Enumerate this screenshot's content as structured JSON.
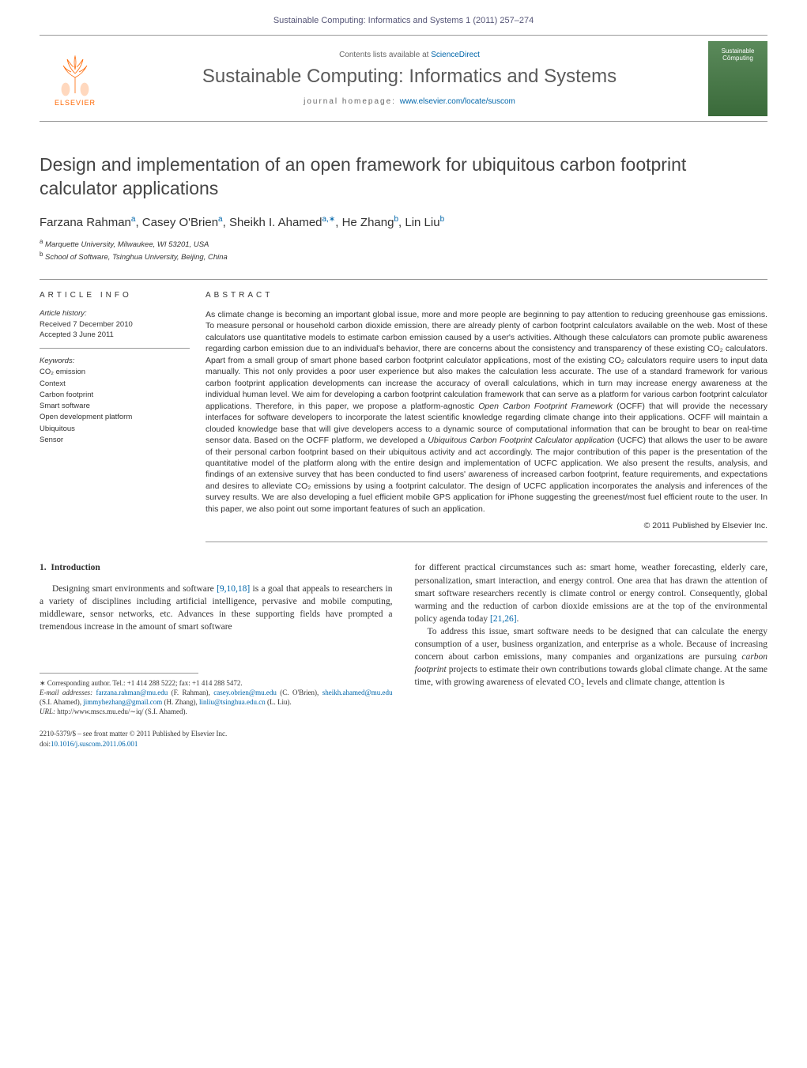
{
  "header": {
    "citation": "Sustainable Computing: Informatics and Systems 1 (2011) 257–274",
    "contents_prefix": "Contents lists available at ",
    "contents_link": "ScienceDirect",
    "journal_title": "Sustainable Computing: Informatics and Systems",
    "homepage_prefix": "journal homepage: ",
    "homepage_url": "www.elsevier.com/locate/suscom",
    "elsevier_label": "ELSEVIER",
    "cover_text_1": "Sustainable",
    "cover_text_2": "Cōmputing"
  },
  "article": {
    "title": "Design and implementation of an open framework for ubiquitous carbon footprint calculator applications",
    "authors_html": "Farzana Rahman<sup>a</sup>, Casey O'Brien<sup>a</sup>, Sheikh I. Ahamed<sup>a,∗</sup>, He Zhang<sup>b</sup>, Lin Liu<sup>b</sup>",
    "affiliations": [
      {
        "sup": "a",
        "text": "Marquette University, Milwaukee, WI 53201, USA"
      },
      {
        "sup": "b",
        "text": "School of Software, Tsinghua University, Beijing, China"
      }
    ]
  },
  "info": {
    "heading": "article info",
    "history_label": "Article history:",
    "received": "Received 7 December 2010",
    "accepted": "Accepted 3 June 2011",
    "keywords_label": "Keywords:",
    "keywords": [
      "CO₂ emission",
      "Context",
      "Carbon footprint",
      "Smart software",
      "Open development platform",
      "Ubiquitous",
      "Sensor"
    ]
  },
  "abstract": {
    "heading": "abstract",
    "text": "As climate change is becoming an important global issue, more and more people are beginning to pay attention to reducing greenhouse gas emissions. To measure personal or household carbon dioxide emission, there are already plenty of carbon footprint calculators available on the web. Most of these calculators use quantitative models to estimate carbon emission caused by a user's activities. Although these calculators can promote public awareness regarding carbon emission due to an individual's behavior, there are concerns about the consistency and transparency of these existing CO₂ calculators. Apart from a small group of smart phone based carbon footprint calculator applications, most of the existing CO₂ calculators require users to input data manually. This not only provides a poor user experience but also makes the calculation less accurate. The use of a standard framework for various carbon footprint application developments can increase the accuracy of overall calculations, which in turn may increase energy awareness at the individual human level. We aim for developing a carbon footprint calculation framework that can serve as a platform for various carbon footprint calculator applications. Therefore, in this paper, we propose a platform-agnostic Open Carbon Footprint Framework (OCFF) that will provide the necessary interfaces for software developers to incorporate the latest scientific knowledge regarding climate change into their applications. OCFF will maintain a clouded knowledge base that will give developers access to a dynamic source of computational information that can be brought to bear on real-time sensor data. Based on the OCFF platform, we developed a Ubiquitous Carbon Footprint Calculator application (UCFC) that allows the user to be aware of their personal carbon footprint based on their ubiquitous activity and act accordingly. The major contribution of this paper is the presentation of the quantitative model of the platform along with the entire design and implementation of UCFC application. We also present the results, analysis, and findings of an extensive survey that has been conducted to find users' awareness of increased carbon footprint, feature requirements, and expectations and desires to alleviate CO₂ emissions by using a footprint calculator. The design of UCFC application incorporates the analysis and inferences of the survey results. We are also developing a fuel efficient mobile GPS application for iPhone suggesting the greenest/most fuel efficient route to the user. In this paper, we also point out some important features of such an application.",
    "copyright": "© 2011 Published by Elsevier Inc."
  },
  "body": {
    "section_number": "1.",
    "section_title": "Introduction",
    "col1_p1": "Designing smart environments and software [9,10,18] is a goal that appeals to researchers in a variety of disciplines including artificial intelligence, pervasive and mobile computing, middleware, sensor networks, etc. Advances in these supporting fields have prompted a tremendous increase in the amount of smart software",
    "col2_p1": "for different practical circumstances such as: smart home, weather forecasting, elderly care, personalization, smart interaction, and energy control. One area that has drawn the attention of smart software researchers recently is climate control or energy control. Consequently, global warming and the reduction of carbon dioxide emissions are at the top of the environmental policy agenda today [21,26].",
    "col2_p2": "To address this issue, smart software needs to be designed that can calculate the energy consumption of a user, business organization, and enterprise as a whole. Because of increasing concern about carbon emissions, many companies and organizations are pursuing carbon footprint projects to estimate their own contributions towards global climate change. At the same time, with growing awareness of elevated CO₂ levels and climate change, attention is",
    "refs_col1": "[9,10,18]",
    "refs_col2": "[21,26]"
  },
  "footnotes": {
    "corr": "∗ Corresponding author. Tel.: +1 414 288 5222; fax: +1 414 288 5472.",
    "email_label": "E-mail addresses:",
    "emails": [
      {
        "addr": "farzana.rahman@mu.edu",
        "who": "(F. Rahman),"
      },
      {
        "addr": "casey.obrien@mu.edu",
        "who": "(C. O'Brien),"
      },
      {
        "addr": "sheikh.ahamed@mu.edu",
        "who": "(S.I. Ahamed),"
      },
      {
        "addr": "jimmyhezhang@gmail.com",
        "who": "(H. Zhang),"
      },
      {
        "addr": "linliu@tsinghua.edu.cn",
        "who": "(L. Liu)."
      }
    ],
    "url_label": "URL:",
    "url": "http://www.mscs.mu.edu/∼iq/",
    "url_who": "(S.I. Ahamed)."
  },
  "footer": {
    "issn_line": "2210-5379/$ – see front matter © 2011 Published by Elsevier Inc.",
    "doi_prefix": "doi:",
    "doi": "10.1016/j.suscom.2011.06.001"
  },
  "colors": {
    "link": "#0066aa",
    "text": "#333333",
    "elsevier_orange": "#ff6600",
    "cover_green_top": "#5b8a5b",
    "cover_green_bottom": "#3a6a3a",
    "rule": "#999999"
  }
}
